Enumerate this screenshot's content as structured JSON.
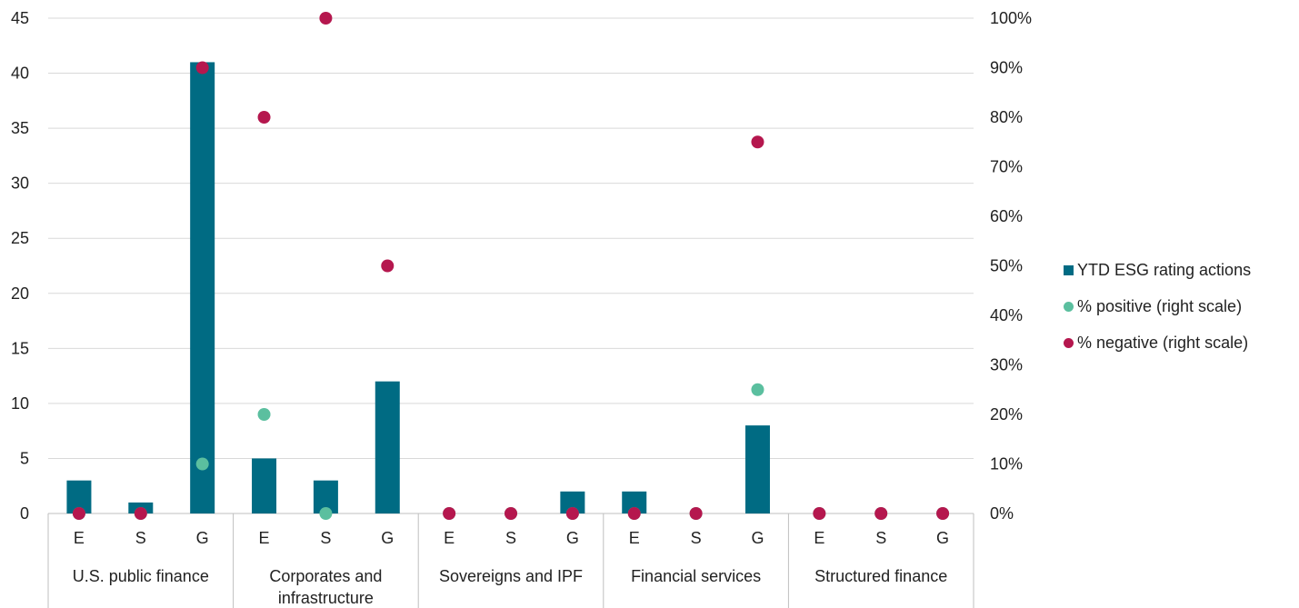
{
  "chart_data": {
    "type": "bar",
    "subcategories": [
      "E",
      "S",
      "G",
      "E",
      "S",
      "G",
      "E",
      "S",
      "G",
      "E",
      "S",
      "G",
      "E",
      "S",
      "G"
    ],
    "groups": [
      {
        "name": "U.S. public finance",
        "lines": [
          "U.S. public finance"
        ]
      },
      {
        "name": "Corporates and infrastructure",
        "lines": [
          "Corporates and",
          "infrastructure"
        ]
      },
      {
        "name": "Sovereigns and IPF",
        "lines": [
          "Sovereigns and IPF"
        ]
      },
      {
        "name": "Financial services",
        "lines": [
          "Financial services"
        ]
      },
      {
        "name": "Structured finance",
        "lines": [
          "Structured finance"
        ]
      }
    ],
    "series": [
      {
        "name": "YTD ESG rating actions",
        "type": "bar",
        "axis": "left",
        "color": "#006b83",
        "values": [
          3,
          1,
          41,
          5,
          3,
          12,
          0,
          0,
          2,
          2,
          0,
          8,
          0,
          0,
          0
        ]
      },
      {
        "name": "% positive (right scale)",
        "type": "scatter",
        "axis": "right",
        "color": "#5bbf9f",
        "values": [
          0,
          0,
          10,
          20,
          0,
          null,
          0,
          0,
          0,
          0,
          0,
          25,
          0,
          0,
          0
        ]
      },
      {
        "name": "% negative (right scale)",
        "type": "scatter",
        "axis": "right",
        "color": "#b5174e",
        "values": [
          0,
          0,
          90,
          80,
          100,
          50,
          0,
          0,
          0,
          0,
          0,
          75,
          0,
          0,
          0
        ]
      }
    ],
    "left_axis": {
      "ylim": [
        0,
        45
      ],
      "ticks": [
        "0",
        "5",
        "10",
        "15",
        "20",
        "25",
        "30",
        "35",
        "40",
        "45"
      ]
    },
    "right_axis": {
      "ylim": [
        0,
        100
      ],
      "ticks": [
        "0%",
        "10%",
        "20%",
        "30%",
        "40%",
        "50%",
        "60%",
        "70%",
        "80%",
        "90%",
        "100%"
      ]
    },
    "grid": true,
    "legend_position": "right"
  }
}
